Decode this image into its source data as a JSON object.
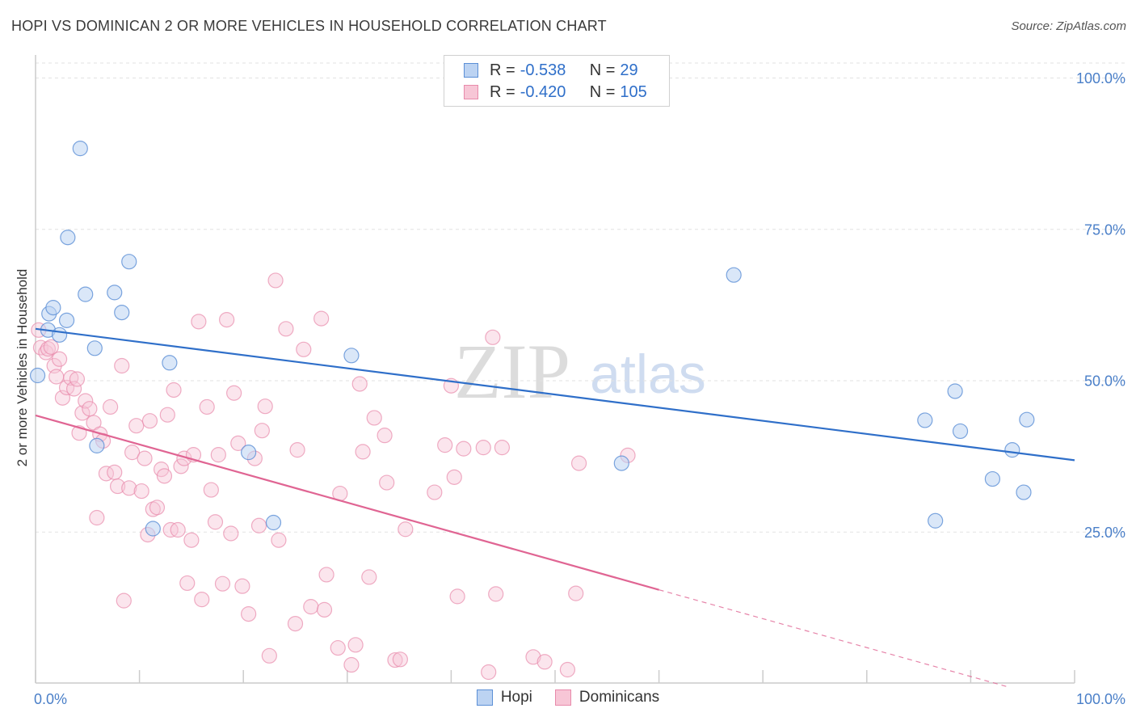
{
  "title": "HOPI VS DOMINICAN 2 OR MORE VEHICLES IN HOUSEHOLD CORRELATION CHART",
  "source": "Source: ZipAtlas.com",
  "watermark": {
    "zip": "ZIP",
    "atlas": "atlas"
  },
  "legend": {
    "rows": [
      {
        "r_label": "R =",
        "r_value": "-0.538",
        "n_label": "N =",
        "n_value": "29"
      },
      {
        "r_label": "R =",
        "r_value": "-0.420",
        "n_label": "N =",
        "n_value": "105"
      }
    ]
  },
  "chart_data": {
    "type": "scatter",
    "title": "HOPI VS DOMINICAN 2 OR MORE VEHICLES IN HOUSEHOLD CORRELATION CHART",
    "xlabel": "",
    "ylabel": "2 or more Vehicles in Household",
    "xlim": [
      0,
      100
    ],
    "ylim": [
      0,
      100
    ],
    "x_tick_labels": [
      "0.0%",
      "100.0%"
    ],
    "y_ticks": [
      25,
      50,
      75,
      100
    ],
    "y_tick_labels": [
      "25.0%",
      "50.0%",
      "75.0%",
      "100.0%"
    ],
    "colors": {
      "hopi": "#5b8fd6",
      "hopi_fill": "#bcd3f2",
      "hopi_line": "#2f6fc9",
      "dom": "#e88aab",
      "dom_fill": "#f7c6d6",
      "dom_line": "#e06593",
      "axis_text": "#4a7fc8"
    },
    "series": [
      {
        "name": "Hopi",
        "trend": {
          "x0": 0,
          "y0": 58.5,
          "x1": 100,
          "y1": 36.8
        },
        "points": [
          [
            0.2,
            50.8
          ],
          [
            1.2,
            58.3
          ],
          [
            1.3,
            61.0
          ],
          [
            1.7,
            62.0
          ],
          [
            2.3,
            57.5
          ],
          [
            3.0,
            59.9
          ],
          [
            3.1,
            73.6
          ],
          [
            4.3,
            88.3
          ],
          [
            4.8,
            64.2
          ],
          [
            5.7,
            55.3
          ],
          [
            5.9,
            39.2
          ],
          [
            7.6,
            64.5
          ],
          [
            8.3,
            61.2
          ],
          [
            9.0,
            69.6
          ],
          [
            11.3,
            25.5
          ],
          [
            12.9,
            52.9
          ],
          [
            20.5,
            38.1
          ],
          [
            22.9,
            26.5
          ],
          [
            30.4,
            54.1
          ],
          [
            56.4,
            36.3
          ],
          [
            67.2,
            67.4
          ],
          [
            85.6,
            43.4
          ],
          [
            86.6,
            26.8
          ],
          [
            88.5,
            48.2
          ],
          [
            89.0,
            41.6
          ],
          [
            92.1,
            33.7
          ],
          [
            94.0,
            38.5
          ],
          [
            95.1,
            31.5
          ],
          [
            95.4,
            43.5
          ]
        ]
      },
      {
        "name": "Dominicans",
        "trend": {
          "x0": 0,
          "y0": 44.2,
          "x1": 60,
          "y1": 15.4
        },
        "trend_dashed": {
          "x0": 60,
          "y0": 15.4,
          "x1": 100,
          "y1": -3.7
        },
        "points": [
          [
            0.3,
            58.3
          ],
          [
            0.5,
            55.4
          ],
          [
            1.0,
            54.6
          ],
          [
            1.2,
            55.2
          ],
          [
            1.5,
            55.5
          ],
          [
            1.8,
            52.4
          ],
          [
            2.0,
            50.6
          ],
          [
            2.3,
            53.5
          ],
          [
            2.6,
            47.1
          ],
          [
            3.0,
            48.8
          ],
          [
            3.4,
            50.4
          ],
          [
            3.7,
            48.6
          ],
          [
            4.0,
            50.2
          ],
          [
            4.2,
            41.3
          ],
          [
            4.5,
            44.6
          ],
          [
            4.8,
            46.6
          ],
          [
            5.2,
            45.3
          ],
          [
            5.6,
            43.0
          ],
          [
            5.9,
            27.3
          ],
          [
            6.2,
            41.1
          ],
          [
            6.5,
            40.0
          ],
          [
            6.8,
            34.6
          ],
          [
            7.2,
            45.6
          ],
          [
            7.6,
            34.8
          ],
          [
            7.9,
            32.5
          ],
          [
            8.3,
            52.4
          ],
          [
            8.5,
            13.6
          ],
          [
            9.0,
            32.2
          ],
          [
            9.3,
            38.1
          ],
          [
            9.7,
            42.5
          ],
          [
            10.2,
            31.7
          ],
          [
            10.5,
            37.1
          ],
          [
            10.8,
            24.5
          ],
          [
            11.0,
            43.3
          ],
          [
            11.3,
            28.7
          ],
          [
            11.7,
            29.0
          ],
          [
            12.1,
            35.3
          ],
          [
            12.4,
            34.2
          ],
          [
            12.7,
            44.3
          ],
          [
            13.0,
            25.3
          ],
          [
            13.3,
            48.4
          ],
          [
            13.7,
            25.3
          ],
          [
            14.0,
            35.8
          ],
          [
            14.3,
            37.1
          ],
          [
            14.6,
            16.5
          ],
          [
            15.0,
            23.6
          ],
          [
            15.2,
            37.7
          ],
          [
            15.7,
            59.7
          ],
          [
            16.0,
            13.8
          ],
          [
            16.5,
            45.6
          ],
          [
            16.9,
            31.9
          ],
          [
            17.3,
            26.6
          ],
          [
            17.6,
            37.7
          ],
          [
            18.0,
            16.4
          ],
          [
            18.4,
            60.0
          ],
          [
            18.8,
            24.7
          ],
          [
            19.1,
            47.9
          ],
          [
            19.5,
            39.6
          ],
          [
            19.9,
            16.0
          ],
          [
            20.5,
            11.4
          ],
          [
            21.1,
            37.1
          ],
          [
            21.5,
            26.0
          ],
          [
            21.8,
            41.7
          ],
          [
            22.1,
            45.7
          ],
          [
            22.5,
            4.5
          ],
          [
            23.1,
            66.5
          ],
          [
            23.4,
            23.6
          ],
          [
            24.1,
            58.5
          ],
          [
            25.0,
            9.8
          ],
          [
            25.2,
            38.5
          ],
          [
            25.8,
            55.1
          ],
          [
            26.5,
            12.6
          ],
          [
            27.5,
            60.2
          ],
          [
            27.8,
            12.1
          ],
          [
            28.0,
            17.9
          ],
          [
            29.1,
            5.8
          ],
          [
            29.3,
            31.3
          ],
          [
            30.4,
            3.0
          ],
          [
            30.8,
            6.3
          ],
          [
            31.2,
            49.4
          ],
          [
            31.5,
            38.2
          ],
          [
            32.1,
            17.5
          ],
          [
            32.6,
            43.8
          ],
          [
            33.6,
            40.9
          ],
          [
            33.8,
            33.1
          ],
          [
            34.6,
            3.8
          ],
          [
            35.1,
            3.9
          ],
          [
            35.6,
            25.4
          ],
          [
            38.4,
            31.5
          ],
          [
            39.4,
            39.3
          ],
          [
            40.0,
            49.1
          ],
          [
            40.3,
            34.0
          ],
          [
            40.6,
            14.3
          ],
          [
            41.2,
            38.7
          ],
          [
            43.1,
            38.9
          ],
          [
            43.6,
            1.8
          ],
          [
            44.0,
            57.1
          ],
          [
            44.3,
            14.7
          ],
          [
            44.9,
            38.9
          ],
          [
            47.9,
            4.3
          ],
          [
            49.0,
            3.5
          ],
          [
            51.2,
            2.2
          ],
          [
            52.0,
            14.8
          ],
          [
            52.3,
            36.3
          ],
          [
            57.0,
            37.6
          ]
        ]
      }
    ]
  }
}
